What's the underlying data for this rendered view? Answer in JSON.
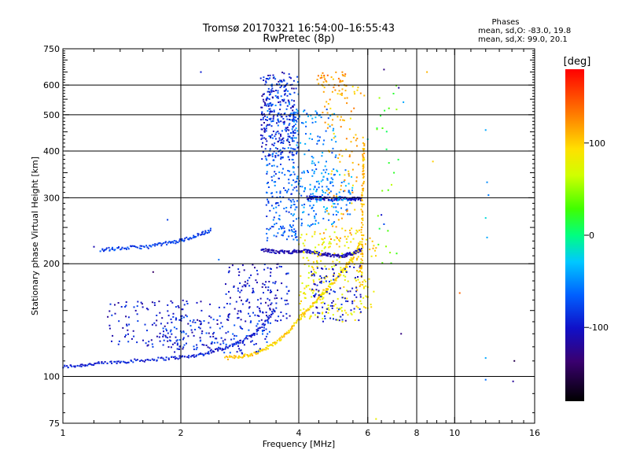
{
  "chart_data": {
    "type": "scatter",
    "title": "Tromsø 20170321 16:54:00–16:55:43",
    "subtitle": "RwPretec (8p)",
    "phase_box": {
      "heading": "Phases",
      "line_o": "mean, sd,O: -83.0, 19.8",
      "line_x": "mean, sd,X:  99.0, 20.1"
    },
    "xlabel": "Frequency [MHz]",
    "ylabel": "Stationary phase Virtual Height [km]",
    "x_scale": "log",
    "y_scale": "log",
    "xlim": [
      1,
      16
    ],
    "ylim": [
      75,
      750
    ],
    "x_ticks": [
      1,
      2,
      4,
      6,
      8,
      10,
      16
    ],
    "x_tick_labels": [
      "1",
      "2",
      "4",
      "6",
      "8",
      "10",
      "16"
    ],
    "x_minor_ticks": [
      1.2,
      1.4,
      1.6,
      1.8,
      2.5,
      3,
      3.5,
      4.5,
      5,
      5.5,
      6.5,
      7,
      7.5,
      8.5,
      9,
      9.5,
      11,
      12,
      13,
      14,
      15
    ],
    "x_grid_lines": [
      2,
      4,
      6,
      8,
      10
    ],
    "y_ticks": [
      75,
      100,
      200,
      300,
      400,
      500,
      600,
      750
    ],
    "y_tick_labels": [
      "75",
      "100",
      "200",
      "300",
      "400",
      "500",
      "600",
      "750"
    ],
    "y_grid_lines": [
      100,
      200,
      300,
      400,
      500,
      600
    ],
    "grid": true,
    "colorbar": {
      "label": "[deg]",
      "range": [
        -180,
        180
      ],
      "ticks": [
        -100,
        0,
        100
      ],
      "tick_labels": [
        "-100",
        "0",
        "100"
      ]
    },
    "traces": [
      {
        "name_ref": "o_layer_e",
        "phase": -95,
        "points": [
          [
            1.0,
            106
          ],
          [
            1.1,
            107
          ],
          [
            1.2,
            108
          ],
          [
            1.35,
            109
          ],
          [
            1.5,
            110
          ],
          [
            1.7,
            111
          ],
          [
            1.9,
            112
          ],
          [
            2.1,
            113
          ],
          [
            2.3,
            115
          ],
          [
            2.5,
            118
          ],
          [
            2.7,
            121
          ],
          [
            2.9,
            125
          ],
          [
            3.1,
            131
          ],
          [
            3.3,
            140
          ],
          [
            3.5,
            152
          ]
        ]
      },
      {
        "name_ref": "x_layer_e",
        "phase": 100,
        "points": [
          [
            2.6,
            112
          ],
          [
            2.8,
            113
          ],
          [
            3.0,
            114
          ],
          [
            3.2,
            117
          ],
          [
            3.4,
            121
          ],
          [
            3.6,
            126
          ],
          [
            3.8,
            133
          ],
          [
            4.0,
            142
          ],
          [
            4.2,
            150
          ],
          [
            4.4,
            158
          ],
          [
            4.6,
            166
          ],
          [
            4.8,
            174
          ],
          [
            5.0,
            182
          ],
          [
            5.2,
            192
          ],
          [
            5.4,
            203
          ],
          [
            5.6,
            215
          ],
          [
            5.8,
            228
          ]
        ]
      },
      {
        "name_ref": "o_f_upper",
        "phase": -80,
        "points": [
          [
            1.25,
            218
          ],
          [
            1.35,
            219
          ],
          [
            1.5,
            221
          ],
          [
            1.65,
            222
          ],
          [
            1.8,
            226
          ],
          [
            1.95,
            229
          ],
          [
            2.1,
            234
          ],
          [
            2.25,
            240
          ],
          [
            2.4,
            247
          ]
        ]
      },
      {
        "name_ref": "o_f_band",
        "phase": -110,
        "points": [
          [
            3.2,
            218
          ],
          [
            3.4,
            216
          ],
          [
            3.6,
            215
          ],
          [
            3.8,
            215
          ],
          [
            4.0,
            216
          ],
          [
            4.2,
            216
          ],
          [
            4.4,
            214
          ],
          [
            4.6,
            212
          ],
          [
            4.8,
            211
          ],
          [
            5.0,
            210
          ],
          [
            5.2,
            210
          ],
          [
            5.4,
            212
          ],
          [
            5.6,
            215
          ],
          [
            5.8,
            218
          ]
        ]
      },
      {
        "name_ref": "o_f_300",
        "phase": -105,
        "points": [
          [
            4.2,
            300
          ],
          [
            4.4,
            300
          ],
          [
            4.6,
            299
          ],
          [
            4.8,
            298
          ],
          [
            5.0,
            298
          ],
          [
            5.2,
            298
          ],
          [
            5.4,
            298
          ],
          [
            5.6,
            298
          ],
          [
            5.8,
            297
          ]
        ]
      },
      {
        "name_ref": "x_vertical",
        "phase": 110,
        "points": [
          [
            5.8,
            180
          ],
          [
            5.8,
            220
          ],
          [
            5.8,
            260
          ],
          [
            5.8,
            300
          ],
          [
            5.85,
            340
          ],
          [
            5.85,
            380
          ],
          [
            5.85,
            420
          ]
        ]
      }
    ],
    "clusters": [
      {
        "phase": -100,
        "f": [
          1.3,
          2.6
        ],
        "h": [
          118,
          160
        ],
        "n": 160
      },
      {
        "phase": -85,
        "f": [
          1.8,
          3.4
        ],
        "h": [
          115,
          145
        ],
        "n": 120
      },
      {
        "phase": -100,
        "f": [
          2.6,
          3.8
        ],
        "h": [
          140,
          200
        ],
        "n": 150
      },
      {
        "phase": -70,
        "f": [
          3.3,
          4.0
        ],
        "h": [
          230,
          640
        ],
        "n": 300
      },
      {
        "phase": -100,
        "f": [
          3.2,
          3.9
        ],
        "h": [
          380,
          650
        ],
        "n": 200
      },
      {
        "phase": -55,
        "f": [
          3.8,
          5.0
        ],
        "h": [
          250,
          520
        ],
        "n": 180
      },
      {
        "phase": -45,
        "f": [
          4.2,
          5.5
        ],
        "h": [
          270,
          360
        ],
        "n": 80
      },
      {
        "phase": 85,
        "f": [
          4.0,
          5.8
        ],
        "h": [
          140,
          250
        ],
        "n": 220
      },
      {
        "phase": -100,
        "f": [
          4.3,
          5.8
        ],
        "h": [
          140,
          200
        ],
        "n": 100
      },
      {
        "phase": 110,
        "f": [
          4.6,
          5.9
        ],
        "h": [
          230,
          600
        ],
        "n": 110
      },
      {
        "phase": 120,
        "f": [
          4.4,
          5.3
        ],
        "h": [
          580,
          650
        ],
        "n": 40
      },
      {
        "phase": 95,
        "f": [
          5.6,
          6.3
        ],
        "h": [
          150,
          240
        ],
        "n": 45
      },
      {
        "phase": 30,
        "f": [
          6.3,
          7.2
        ],
        "h": [
          200,
          600
        ],
        "n": 25
      }
    ],
    "isolated_points": [
      [
        2.25,
        650,
        -95
      ],
      [
        1.85,
        262,
        -80
      ],
      [
        1.2,
        222,
        -110
      ],
      [
        6.6,
        660,
        -130
      ],
      [
        7.2,
        590,
        -120
      ],
      [
        8.5,
        650,
        110
      ],
      [
        8.8,
        375,
        100
      ],
      [
        6.0,
        430,
        -20
      ],
      [
        6.9,
        325,
        60
      ],
      [
        6.6,
        255,
        -75
      ],
      [
        7.4,
        540,
        -40
      ],
      [
        12.0,
        455,
        -40
      ],
      [
        12.1,
        330,
        -50
      ],
      [
        12.0,
        265,
        -20
      ],
      [
        12.1,
        235,
        -40
      ],
      [
        12.2,
        305,
        -55
      ],
      [
        12.0,
        112,
        -40
      ],
      [
        14.2,
        110,
        -150
      ],
      [
        14.1,
        97,
        -120
      ],
      [
        12.0,
        98,
        -60
      ],
      [
        10.3,
        167,
        140
      ],
      [
        7.3,
        130,
        -130
      ],
      [
        6.5,
        270,
        -100
      ],
      [
        7.0,
        350,
        20
      ],
      [
        6.3,
        77,
        80
      ],
      [
        1.7,
        190,
        -140
      ],
      [
        2.5,
        205,
        -60
      ]
    ]
  }
}
